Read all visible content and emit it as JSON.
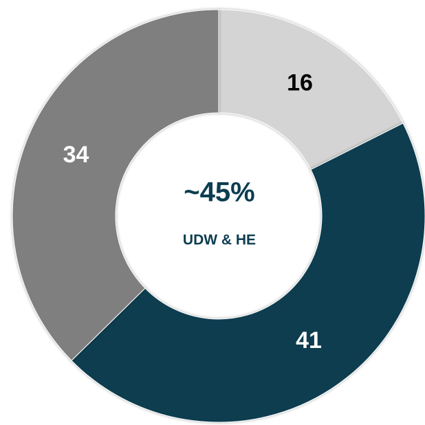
{
  "chart_data": {
    "type": "donut",
    "categories": [
      null,
      null,
      null
    ],
    "values": [
      16,
      41,
      34
    ],
    "colors": [
      "#d4d4d4",
      "#0c3d50",
      "#7f7f7f"
    ],
    "center_text": "~45%",
    "center_subtext": "UDW & HE"
  }
}
